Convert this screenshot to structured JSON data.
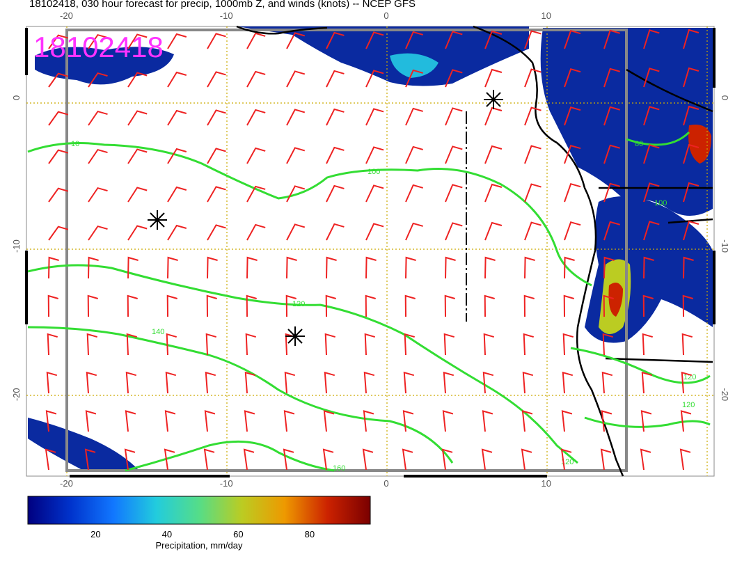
{
  "title": "18102418, 030 hour forecast for precip, 1000mb Z, and winds (knots) -- NCEP GFS",
  "stamp": "18102418",
  "map": {
    "lon_ticks": [
      "-20",
      "-10",
      "0",
      "10"
    ],
    "lon_values": [
      -20,
      -10,
      0,
      10
    ],
    "lat_ticks": [
      "0",
      "-10",
      "-20"
    ],
    "lat_values": [
      0,
      -10,
      -20
    ],
    "lon_range": [
      -22.5,
      20.5
    ],
    "lat_range": [
      4.8,
      -25.5
    ]
  },
  "contours": {
    "line_color": "#33dd33",
    "labels": [
      "10",
      "100",
      "120",
      "140",
      "160",
      "120",
      "100",
      "80",
      "120",
      "120"
    ]
  },
  "colorbar": {
    "label": "Precipitation, mm/day",
    "ticks": [
      "20",
      "40",
      "60",
      "80"
    ],
    "tick_values": [
      20,
      40,
      60,
      80
    ],
    "range": [
      1,
      97
    ],
    "colors": [
      "#000080",
      "#0033cc",
      "#1177ff",
      "#22ccdd",
      "#55dd88",
      "#bbcc22",
      "#ee9900",
      "#cc2200",
      "#7a0000"
    ]
  },
  "colors": {
    "wind_barb": "#ee2222",
    "coast": "#000000",
    "grid": "#ccaa00",
    "frame": "#888888"
  }
}
